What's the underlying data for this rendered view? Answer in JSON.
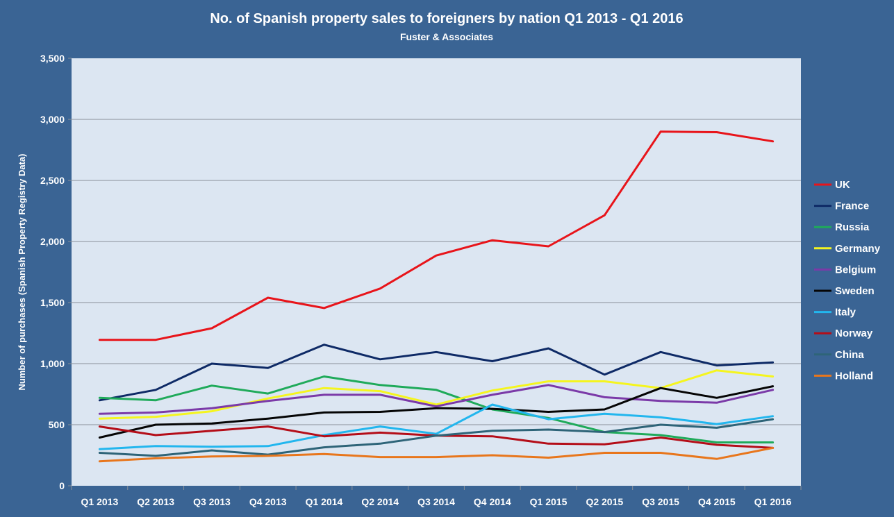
{
  "chart_data": {
    "type": "line",
    "title": "No. of Spanish property sales to foreigners by nation Q1 2013 - Q1 2016",
    "subtitle": "Fuster & Associates",
    "ylabel": "Number of purchases (Spanish Property Registry Data)",
    "xlabel": "",
    "ylim": [
      0,
      3500
    ],
    "yticks": [
      0,
      500,
      1000,
      1500,
      2000,
      2500,
      3000,
      3500
    ],
    "ytick_labels": [
      "0",
      "500",
      "1,000",
      "1,500",
      "2,000",
      "2,500",
      "3,000",
      "3,500"
    ],
    "categories": [
      "Q1 2013",
      "Q2 2013",
      "Q3 2013",
      "Q4 2013",
      "Q1 2014",
      "Q2 2014",
      "Q3 2014",
      "Q4 2014",
      "Q1 2015",
      "Q2 2015",
      "Q3 2015",
      "Q4 2015",
      "Q1 2016"
    ],
    "grid": true,
    "legend_position": "right",
    "plot_background": "#dce6f2",
    "series": [
      {
        "name": "UK",
        "color": "#e8141a",
        "values": [
          1195,
          1195,
          1290,
          1540,
          1455,
          1615,
          1885,
          2010,
          1960,
          2215,
          2900,
          2895,
          2820
        ]
      },
      {
        "name": "France",
        "color": "#0e2a66",
        "values": [
          700,
          785,
          1000,
          965,
          1155,
          1035,
          1095,
          1020,
          1125,
          910,
          1095,
          985,
          1010
        ]
      },
      {
        "name": "Russia",
        "color": "#1faa5a",
        "values": [
          720,
          700,
          820,
          755,
          895,
          825,
          785,
          625,
          555,
          440,
          415,
          355,
          355
        ]
      },
      {
        "name": "Germany",
        "color": "#f5f51e",
        "values": [
          550,
          565,
          610,
          715,
          800,
          775,
          665,
          780,
          855,
          855,
          800,
          945,
          895
        ]
      },
      {
        "name": "Belgium",
        "color": "#7b3aa8",
        "values": [
          590,
          600,
          635,
          695,
          745,
          745,
          650,
          745,
          825,
          725,
          695,
          680,
          785
        ]
      },
      {
        "name": "Sweden",
        "color": "#050505",
        "values": [
          395,
          500,
          510,
          550,
          600,
          605,
          635,
          630,
          605,
          625,
          800,
          720,
          815
        ]
      },
      {
        "name": "Italy",
        "color": "#22b6ee",
        "values": [
          300,
          325,
          320,
          325,
          415,
          485,
          425,
          665,
          545,
          590,
          560,
          505,
          570
        ]
      },
      {
        "name": "Norway",
        "color": "#b40d18",
        "values": [
          485,
          415,
          450,
          485,
          405,
          435,
          410,
          405,
          345,
          340,
          395,
          335,
          310
        ]
      },
      {
        "name": "China",
        "color": "#2e6478",
        "values": [
          270,
          245,
          290,
          255,
          315,
          345,
          410,
          450,
          460,
          440,
          500,
          475,
          545
        ]
      },
      {
        "name": "Holland",
        "color": "#e8761c",
        "values": [
          200,
          225,
          240,
          245,
          260,
          235,
          235,
          250,
          230,
          270,
          270,
          220,
          310
        ]
      }
    ]
  }
}
